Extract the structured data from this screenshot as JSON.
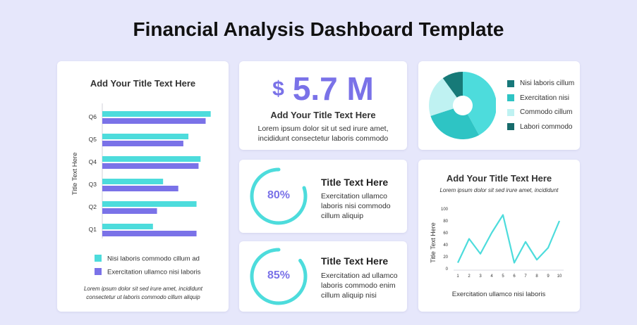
{
  "page": {
    "title": "Financial Analysis Dashboard Template"
  },
  "bar_card": {
    "title": "Add Your Title Text Here",
    "note": "Lorem ipsum dolor sit sed irure amet, incididunt consectetur ut laboris commodo cillum aliquip"
  },
  "kpi_card": {
    "currency": "$",
    "value": "5.7 M",
    "title": "Add Your Title Text Here",
    "text": "Lorem ipsum dolor sit ut sed irure amet, incididunt consectetur laboris commodo"
  },
  "pie_card": {
    "legend": [
      {
        "label": "Nisi laboris cillum",
        "color": "#17787a"
      },
      {
        "label": "Exercitation nisi",
        "color": "#2ec4c4"
      },
      {
        "label": "Commodo cillum",
        "color": "#bff2f2"
      },
      {
        "label": "Labori commodo",
        "color": "#176b6b"
      }
    ]
  },
  "progress_cards": [
    {
      "percent_label": "80%",
      "value": 80,
      "title": "Title Text Here",
      "text": "Exercitation ullamco laboris nisi commodo cillum aliquip"
    },
    {
      "percent_label": "85%",
      "value": 85,
      "title": "Title Text Here",
      "text": "Exercitation ad ullamco laboris commodo enim cillum aliquip nisi"
    }
  ],
  "line_card": {
    "title": "Add Your Title Text Here",
    "subtitle": "Lorem ipsum dolor sit sed irure amet, incididunt"
  },
  "colors": {
    "accent": "#7a72e8",
    "teal": "#4ddcdc",
    "background": "#e6e7fb"
  },
  "chart_data": [
    {
      "type": "bar",
      "orientation": "horizontal",
      "categories": [
        "Q1",
        "Q2",
        "Q3",
        "Q4",
        "Q5",
        "Q6"
      ],
      "series": [
        {
          "name": "Nisi laboris commodo cillum ad",
          "color": "#4ddcdc",
          "values": [
            50,
            93,
            60,
            97,
            85,
            107
          ]
        },
        {
          "name": "Exercitation ullamco nisi laboris",
          "color": "#7a72e8",
          "values": [
            93,
            54,
            75,
            95,
            80,
            102
          ]
        }
      ],
      "ylabel": "Title Text Here",
      "xlim": [
        0,
        110
      ],
      "legend": "bottom"
    },
    {
      "type": "pie",
      "donut": true,
      "labels": [
        "Nisi laboris cillum",
        "Exercitation nisi",
        "Commodo cillum",
        "Labori commodo"
      ],
      "values": [
        42,
        28,
        20,
        10
      ],
      "colors": [
        "#4ddcdc",
        "#2ec4c4",
        "#bff2f2",
        "#177a78"
      ]
    },
    {
      "type": "line",
      "x": [
        1,
        2,
        3,
        4,
        5,
        6,
        7,
        8,
        9,
        10
      ],
      "y": [
        10,
        50,
        25,
        60,
        90,
        10,
        45,
        15,
        35,
        80
      ],
      "xlim": [
        1,
        10
      ],
      "ylim": [
        0,
        100
      ],
      "yticks": [
        0,
        20,
        40,
        60,
        80,
        100
      ],
      "xlabel": "Exercitation ullamco nisi laboris",
      "ylabel": "Title Text Here",
      "color": "#4ddcdc"
    }
  ]
}
